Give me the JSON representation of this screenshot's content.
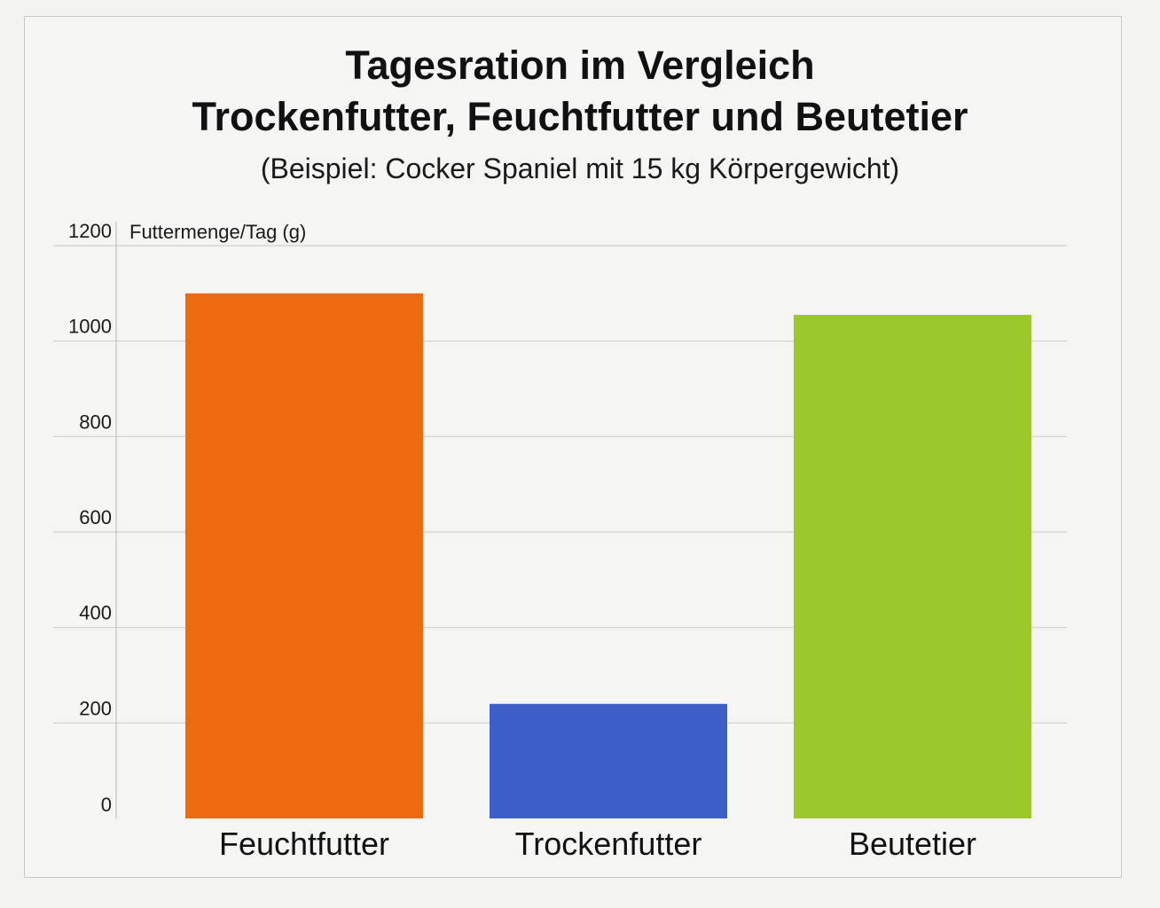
{
  "chart_data": {
    "type": "bar",
    "title": "Tagesration im Vergleich",
    "title_line2": "Trockenfutter, Feuchtfutter und Beutetier",
    "subtitle": "(Beispiel: Cocker Spaniel mit 15 kg Körpergewicht)",
    "ylabel": "Futtermenge/Tag (g)",
    "xlabel": "",
    "ylim": [
      0,
      1200
    ],
    "yticks": [
      0,
      200,
      400,
      600,
      800,
      1000,
      1200
    ],
    "grid": true,
    "categories": [
      "Feuchtfutter",
      "Trockenfutter",
      "Beutetier"
    ],
    "values": [
      1100,
      240,
      1055
    ],
    "colors": [
      "#ee6a10",
      "#3f5fc8",
      "#9dc82a"
    ]
  }
}
